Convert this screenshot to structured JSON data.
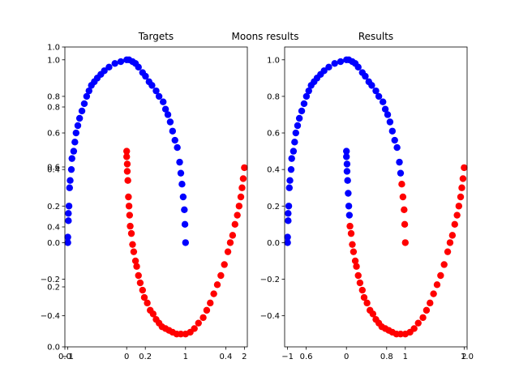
{
  "suptitle": "Moons results",
  "colors": {
    "class_0": "#0000ff",
    "class_1": "#ff0000"
  },
  "overlay_axis": {
    "xlim": [
      0.0,
      1.0
    ],
    "ylim": [
      0.0,
      1.0
    ],
    "xticks": [
      {
        "value": 0.0,
        "label": "0.0"
      },
      {
        "value": 0.2,
        "label": "0.2"
      },
      {
        "value": 0.4,
        "label": "0.4"
      },
      {
        "value": 0.6,
        "label": "0.6"
      },
      {
        "value": 0.8,
        "label": "0.8"
      },
      {
        "value": 1.0,
        "label": "1.0"
      }
    ],
    "yticks": [
      {
        "value": 0.0,
        "label": "0.0"
      },
      {
        "value": 0.2,
        "label": "0.2"
      },
      {
        "value": 0.4,
        "label": "0.4"
      },
      {
        "value": 0.6,
        "label": "0.6"
      },
      {
        "value": 0.8,
        "label": "0.8"
      },
      {
        "value": 1.0,
        "label": "1.0"
      }
    ]
  },
  "chart_data": [
    {
      "type": "scatter",
      "title": "Targets",
      "xlim": [
        -1.05,
        2.05
      ],
      "ylim": [
        -0.57,
        1.07
      ],
      "xticks": [
        {
          "value": -1,
          "label": "−1"
        },
        {
          "value": 0,
          "label": "0"
        },
        {
          "value": 1,
          "label": "1"
        },
        {
          "value": 2,
          "label": "2"
        }
      ],
      "yticks": [
        {
          "value": -0.4,
          "label": "−0.4"
        },
        {
          "value": -0.2,
          "label": "−0.2"
        },
        {
          "value": 0.0,
          "label": "0.0"
        },
        {
          "value": 0.2,
          "label": "0.2"
        },
        {
          "value": 0.4,
          "label": "0.4"
        },
        {
          "value": 0.6,
          "label": "0.6"
        },
        {
          "value": 0.8,
          "label": "0.8"
        },
        {
          "value": 1.0,
          "label": "1.0"
        }
      ],
      "series": [
        {
          "color": "#0000ff",
          "points": [
            [
              -1.0,
              0.0
            ],
            [
              -1.0,
              0.03
            ],
            [
              -0.99,
              0.12
            ],
            [
              -0.99,
              0.16
            ],
            [
              -0.98,
              0.2
            ],
            [
              -0.97,
              0.3
            ],
            [
              -0.96,
              0.34
            ],
            [
              -0.94,
              0.4
            ],
            [
              -0.93,
              0.46
            ],
            [
              -0.9,
              0.5
            ],
            [
              -0.88,
              0.55
            ],
            [
              -0.86,
              0.6
            ],
            [
              -0.83,
              0.64
            ],
            [
              -0.8,
              0.68
            ],
            [
              -0.76,
              0.72
            ],
            [
              -0.72,
              0.76
            ],
            [
              -0.68,
              0.8
            ],
            [
              -0.64,
              0.83
            ],
            [
              -0.6,
              0.86
            ],
            [
              -0.55,
              0.88
            ],
            [
              -0.5,
              0.9
            ],
            [
              -0.44,
              0.92
            ],
            [
              -0.38,
              0.94
            ],
            [
              -0.3,
              0.96
            ],
            [
              -0.2,
              0.98
            ],
            [
              -0.1,
              0.99
            ],
            [
              0.0,
              1.0
            ],
            [
              0.04,
              1.0
            ],
            [
              0.1,
              0.99
            ],
            [
              0.15,
              0.98
            ],
            [
              0.2,
              0.96
            ],
            [
              0.27,
              0.93
            ],
            [
              0.32,
              0.91
            ],
            [
              0.38,
              0.88
            ],
            [
              0.43,
              0.86
            ],
            [
              0.5,
              0.83
            ],
            [
              0.55,
              0.8
            ],
            [
              0.62,
              0.77
            ],
            [
              0.66,
              0.73
            ],
            [
              0.7,
              0.7
            ],
            [
              0.74,
              0.66
            ],
            [
              0.78,
              0.61
            ],
            [
              0.82,
              0.56
            ],
            [
              0.86,
              0.52
            ],
            [
              0.9,
              0.44
            ],
            [
              0.92,
              0.38
            ],
            [
              0.94,
              0.32
            ],
            [
              0.96,
              0.25
            ],
            [
              0.98,
              0.18
            ],
            [
              0.99,
              0.1
            ],
            [
              1.0,
              0.0
            ]
          ]
        },
        {
          "color": "#ff0000",
          "points": [
            [
              0.0,
              0.5
            ],
            [
              0.0,
              0.47
            ],
            [
              0.01,
              0.43
            ],
            [
              0.01,
              0.39
            ],
            [
              0.02,
              0.34
            ],
            [
              0.03,
              0.25
            ],
            [
              0.04,
              0.2
            ],
            [
              0.05,
              0.15
            ],
            [
              0.06,
              0.09
            ],
            [
              0.08,
              0.05
            ],
            [
              0.1,
              -0.01
            ],
            [
              0.12,
              -0.05
            ],
            [
              0.15,
              -0.1
            ],
            [
              0.17,
              -0.13
            ],
            [
              0.2,
              -0.18
            ],
            [
              0.23,
              -0.22
            ],
            [
              0.27,
              -0.26
            ],
            [
              0.3,
              -0.3
            ],
            [
              0.35,
              -0.33
            ],
            [
              0.4,
              -0.37
            ],
            [
              0.45,
              -0.39
            ],
            [
              0.5,
              -0.42
            ],
            [
              0.55,
              -0.44
            ],
            [
              0.6,
              -0.46
            ],
            [
              0.66,
              -0.47
            ],
            [
              0.72,
              -0.48
            ],
            [
              0.78,
              -0.49
            ],
            [
              0.85,
              -0.5
            ],
            [
              0.92,
              -0.5
            ],
            [
              1.0,
              -0.5
            ],
            [
              1.08,
              -0.49
            ],
            [
              1.15,
              -0.47
            ],
            [
              1.22,
              -0.44
            ],
            [
              1.3,
              -0.41
            ],
            [
              1.36,
              -0.37
            ],
            [
              1.42,
              -0.33
            ],
            [
              1.48,
              -0.28
            ],
            [
              1.54,
              -0.23
            ],
            [
              1.6,
              -0.18
            ],
            [
              1.66,
              -0.12
            ],
            [
              1.72,
              -0.05
            ],
            [
              1.76,
              0.0
            ],
            [
              1.8,
              0.04
            ],
            [
              1.84,
              0.1
            ],
            [
              1.88,
              0.15
            ],
            [
              1.91,
              0.2
            ],
            [
              1.94,
              0.25
            ],
            [
              1.96,
              0.3
            ],
            [
              1.98,
              0.35
            ],
            [
              2.0,
              0.41
            ]
          ]
        }
      ]
    },
    {
      "type": "scatter",
      "title": "Results",
      "xlim": [
        -1.05,
        2.05
      ],
      "ylim": [
        -0.57,
        1.07
      ],
      "xticks": [
        {
          "value": -1,
          "label": "−1"
        },
        {
          "value": 0,
          "label": "0"
        },
        {
          "value": 1,
          "label": "1"
        },
        {
          "value": 2,
          "label": "2"
        }
      ],
      "yticks": [
        {
          "value": -0.4,
          "label": "−0.4"
        },
        {
          "value": -0.2,
          "label": "−0.2"
        },
        {
          "value": 0.0,
          "label": "0.0"
        },
        {
          "value": 0.2,
          "label": "0.2"
        },
        {
          "value": 0.4,
          "label": "0.4"
        },
        {
          "value": 0.6,
          "label": "0.6"
        },
        {
          "value": 0.8,
          "label": "0.8"
        },
        {
          "value": 1.0,
          "label": "1.0"
        }
      ],
      "series": [
        {
          "color": "#0000ff",
          "points": [
            [
              -1.0,
              0.0
            ],
            [
              -1.0,
              0.03
            ],
            [
              -0.99,
              0.12
            ],
            [
              -0.99,
              0.16
            ],
            [
              -0.98,
              0.2
            ],
            [
              -0.97,
              0.3
            ],
            [
              -0.96,
              0.34
            ],
            [
              -0.94,
              0.4
            ],
            [
              -0.93,
              0.46
            ],
            [
              -0.9,
              0.5
            ],
            [
              -0.88,
              0.55
            ],
            [
              -0.86,
              0.6
            ],
            [
              -0.83,
              0.64
            ],
            [
              -0.8,
              0.68
            ],
            [
              -0.76,
              0.72
            ],
            [
              -0.72,
              0.76
            ],
            [
              -0.68,
              0.8
            ],
            [
              -0.64,
              0.83
            ],
            [
              -0.6,
              0.86
            ],
            [
              -0.55,
              0.88
            ],
            [
              -0.5,
              0.9
            ],
            [
              -0.44,
              0.92
            ],
            [
              -0.38,
              0.94
            ],
            [
              -0.3,
              0.96
            ],
            [
              -0.2,
              0.98
            ],
            [
              -0.1,
              0.99
            ],
            [
              0.0,
              1.0
            ],
            [
              0.04,
              1.0
            ],
            [
              0.1,
              0.99
            ],
            [
              0.15,
              0.98
            ],
            [
              0.2,
              0.96
            ],
            [
              0.27,
              0.93
            ],
            [
              0.32,
              0.91
            ],
            [
              0.38,
              0.88
            ],
            [
              0.43,
              0.86
            ],
            [
              0.5,
              0.83
            ],
            [
              0.55,
              0.8
            ],
            [
              0.62,
              0.77
            ],
            [
              0.66,
              0.73
            ],
            [
              0.7,
              0.7
            ],
            [
              0.74,
              0.66
            ],
            [
              0.78,
              0.61
            ],
            [
              0.82,
              0.56
            ],
            [
              0.86,
              0.52
            ],
            [
              0.9,
              0.44
            ],
            [
              0.92,
              0.38
            ],
            [
              0.0,
              0.5
            ],
            [
              0.0,
              0.47
            ],
            [
              0.01,
              0.43
            ],
            [
              0.01,
              0.39
            ],
            [
              0.02,
              0.34
            ],
            [
              0.03,
              0.27
            ],
            [
              0.04,
              0.2
            ],
            [
              0.05,
              0.15
            ]
          ]
        },
        {
          "color": "#ff0000",
          "points": [
            [
              0.94,
              0.32
            ],
            [
              0.96,
              0.25
            ],
            [
              0.98,
              0.18
            ],
            [
              0.99,
              0.1
            ],
            [
              1.0,
              0.0
            ],
            [
              0.06,
              0.09
            ],
            [
              0.08,
              0.05
            ],
            [
              0.1,
              -0.01
            ],
            [
              0.12,
              -0.05
            ],
            [
              0.15,
              -0.1
            ],
            [
              0.17,
              -0.13
            ],
            [
              0.2,
              -0.18
            ],
            [
              0.23,
              -0.22
            ],
            [
              0.27,
              -0.26
            ],
            [
              0.3,
              -0.3
            ],
            [
              0.35,
              -0.33
            ],
            [
              0.4,
              -0.37
            ],
            [
              0.45,
              -0.39
            ],
            [
              0.5,
              -0.42
            ],
            [
              0.55,
              -0.44
            ],
            [
              0.6,
              -0.46
            ],
            [
              0.66,
              -0.47
            ],
            [
              0.72,
              -0.48
            ],
            [
              0.78,
              -0.49
            ],
            [
              0.85,
              -0.5
            ],
            [
              0.92,
              -0.5
            ],
            [
              1.0,
              -0.5
            ],
            [
              1.08,
              -0.49
            ],
            [
              1.15,
              -0.47
            ],
            [
              1.22,
              -0.44
            ],
            [
              1.3,
              -0.41
            ],
            [
              1.36,
              -0.37
            ],
            [
              1.42,
              -0.33
            ],
            [
              1.48,
              -0.28
            ],
            [
              1.54,
              -0.23
            ],
            [
              1.6,
              -0.18
            ],
            [
              1.66,
              -0.12
            ],
            [
              1.72,
              -0.05
            ],
            [
              1.76,
              0.0
            ],
            [
              1.8,
              0.04
            ],
            [
              1.84,
              0.1
            ],
            [
              1.88,
              0.15
            ],
            [
              1.91,
              0.2
            ],
            [
              1.94,
              0.25
            ],
            [
              1.96,
              0.3
            ],
            [
              1.98,
              0.35
            ],
            [
              2.0,
              0.41
            ]
          ]
        }
      ]
    }
  ]
}
